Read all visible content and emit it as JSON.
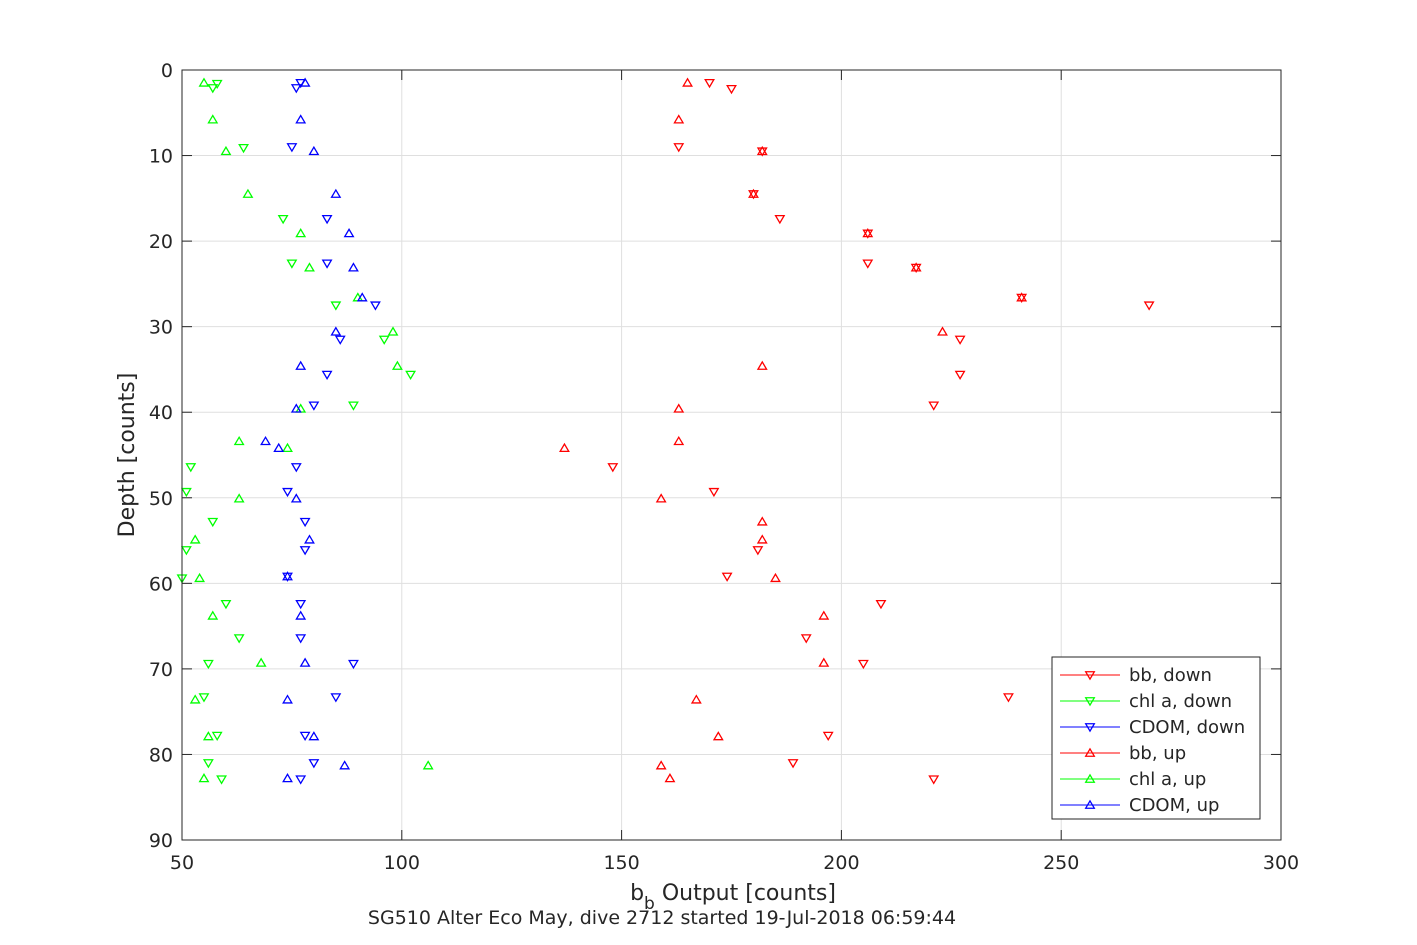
{
  "chart_data": {
    "type": "scatter",
    "title": "",
    "xlabel_main": "b",
    "xlabel_sub": "b",
    "xlabel_rest": " Output [counts]",
    "ylabel": "Depth [counts]",
    "caption": "SG510 Alter Eco May, dive 2712 started 19-Jul-2018 06:59:44",
    "xlim": [
      50,
      300
    ],
    "ylim": [
      0,
      90
    ],
    "y_reversed": true,
    "xticks": [
      50,
      100,
      150,
      200,
      250,
      300
    ],
    "yticks": [
      0,
      10,
      20,
      30,
      40,
      50,
      60,
      70,
      80,
      90
    ],
    "grid": true,
    "legend_position": "bottom-right",
    "series": [
      {
        "name": "bb, down",
        "color": "#ff0000",
        "marker": "triangle-down",
        "points": [
          [
            170,
            1.5
          ],
          [
            175,
            2.2
          ],
          [
            163,
            9
          ],
          [
            182,
            9.5
          ],
          [
            180,
            14.5
          ],
          [
            186,
            17.4
          ],
          [
            206,
            19.1
          ],
          [
            206,
            22.6
          ],
          [
            217,
            23.1
          ],
          [
            241,
            26.6
          ],
          [
            270,
            27.5
          ],
          [
            227,
            31.5
          ],
          [
            227,
            35.6
          ],
          [
            221,
            39.2
          ],
          [
            148,
            46.4
          ],
          [
            171,
            49.3
          ],
          [
            181,
            56.1
          ],
          [
            174,
            59.2
          ],
          [
            209,
            62.4
          ],
          [
            192,
            66.4
          ],
          [
            205,
            69.4
          ],
          [
            238,
            73.3
          ],
          [
            197,
            77.8
          ],
          [
            189,
            81
          ],
          [
            221,
            82.9
          ]
        ]
      },
      {
        "name": "chl a, down",
        "color": "#00ff00",
        "marker": "triangle-down",
        "points": [
          [
            58,
            1.6
          ],
          [
            57,
            2.1
          ],
          [
            64,
            9.1
          ],
          [
            73,
            17.4
          ],
          [
            75,
            22.6
          ],
          [
            85,
            27.5
          ],
          [
            96,
            31.5
          ],
          [
            102,
            35.6
          ],
          [
            89,
            39.2
          ],
          [
            52,
            46.4
          ],
          [
            51,
            49.3
          ],
          [
            57,
            52.8
          ],
          [
            51,
            56.1
          ],
          [
            50,
            59.4
          ],
          [
            60,
            62.4
          ],
          [
            63,
            66.4
          ],
          [
            56,
            69.4
          ],
          [
            55,
            73.3
          ],
          [
            58,
            77.8
          ],
          [
            56,
            81
          ],
          [
            59,
            82.9
          ]
        ]
      },
      {
        "name": "CDOM, down",
        "color": "#0000ff",
        "marker": "triangle-down",
        "points": [
          [
            77,
            1.5
          ],
          [
            76,
            2.1
          ],
          [
            75,
            9
          ],
          [
            83,
            17.4
          ],
          [
            83,
            22.6
          ],
          [
            94,
            27.5
          ],
          [
            86,
            31.5
          ],
          [
            83,
            35.6
          ],
          [
            80,
            39.2
          ],
          [
            76,
            46.4
          ],
          [
            74,
            49.3
          ],
          [
            78,
            52.8
          ],
          [
            78,
            56.1
          ],
          [
            74,
            59.2
          ],
          [
            77,
            62.4
          ],
          [
            77,
            66.4
          ],
          [
            89,
            69.4
          ],
          [
            85,
            73.3
          ],
          [
            78,
            77.8
          ],
          [
            80,
            81
          ],
          [
            77,
            82.9
          ]
        ]
      },
      {
        "name": "bb, up",
        "color": "#ff0000",
        "marker": "triangle-up",
        "points": [
          [
            165,
            1.5
          ],
          [
            163,
            5.8
          ],
          [
            182,
            9.5
          ],
          [
            180,
            14.5
          ],
          [
            206,
            19.1
          ],
          [
            217,
            23.1
          ],
          [
            241,
            26.6
          ],
          [
            223,
            30.6
          ],
          [
            182,
            34.6
          ],
          [
            163,
            39.6
          ],
          [
            163,
            43.4
          ],
          [
            137,
            44.2
          ],
          [
            159,
            50.1
          ],
          [
            182,
            52.8
          ],
          [
            182,
            54.9
          ],
          [
            185,
            59.4
          ],
          [
            196,
            63.8
          ],
          [
            196,
            69.3
          ],
          [
            167,
            73.6
          ],
          [
            172,
            77.9
          ],
          [
            159,
            81.3
          ],
          [
            161,
            82.8
          ]
        ]
      },
      {
        "name": "chl a, up",
        "color": "#00ff00",
        "marker": "triangle-up",
        "points": [
          [
            55,
            1.5
          ],
          [
            57,
            5.8
          ],
          [
            60,
            9.5
          ],
          [
            65,
            14.5
          ],
          [
            77,
            19.1
          ],
          [
            79,
            23.1
          ],
          [
            90,
            26.6
          ],
          [
            98,
            30.6
          ],
          [
            99,
            34.6
          ],
          [
            77,
            39.6
          ],
          [
            63,
            43.4
          ],
          [
            74,
            44.2
          ],
          [
            63,
            50.1
          ],
          [
            53,
            54.9
          ],
          [
            54,
            59.4
          ],
          [
            57,
            63.8
          ],
          [
            68,
            69.3
          ],
          [
            53,
            73.6
          ],
          [
            56,
            77.9
          ],
          [
            106,
            81.3
          ],
          [
            55,
            82.8
          ]
        ]
      },
      {
        "name": "CDOM, up",
        "color": "#0000ff",
        "marker": "triangle-up",
        "points": [
          [
            78,
            1.5
          ],
          [
            77,
            5.8
          ],
          [
            80,
            9.5
          ],
          [
            85,
            14.5
          ],
          [
            88,
            19.1
          ],
          [
            89,
            23.1
          ],
          [
            91,
            26.6
          ],
          [
            85,
            30.6
          ],
          [
            77,
            34.6
          ],
          [
            76,
            39.6
          ],
          [
            69,
            43.4
          ],
          [
            72,
            44.2
          ],
          [
            76,
            50.1
          ],
          [
            79,
            54.9
          ],
          [
            74,
            59.2
          ],
          [
            77,
            63.8
          ],
          [
            78,
            69.3
          ],
          [
            74,
            73.6
          ],
          [
            80,
            77.9
          ],
          [
            87,
            81.3
          ],
          [
            74,
            82.8
          ]
        ]
      }
    ]
  }
}
